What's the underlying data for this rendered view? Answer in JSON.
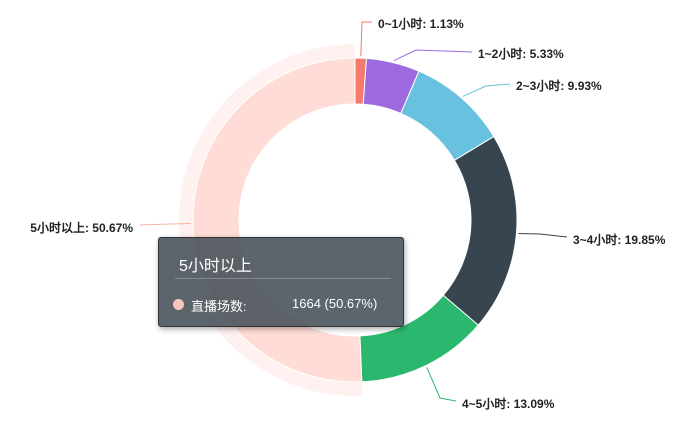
{
  "chart_data": {
    "type": "pie",
    "donut": true,
    "categories": [
      "0~1小时",
      "1~2小时",
      "2~3小时",
      "3~4小时",
      "4~5小时",
      "5小时以上"
    ],
    "values": [
      1.13,
      5.33,
      9.93,
      19.85,
      13.09,
      50.67
    ],
    "labels": [
      "0~1小时: 1.13%",
      "1~2小时: 5.33%",
      "2~3小时: 9.93%",
      "3~4小时: 19.85%",
      "4~5小时: 13.09%",
      "5小时以上: 50.67%"
    ],
    "colors": [
      "#f47a6b",
      "#9d6ae0",
      "#68c2df",
      "#36454f",
      "#2bb86e",
      "#ffddd6"
    ],
    "highlighted_index": 5,
    "highlight_halo_color": "#fff1ef"
  },
  "tooltip": {
    "title": "5小时以上",
    "series_label": "直播场数:",
    "value": "1664 (50.67%)",
    "dot_color": "#f6c6bb"
  }
}
